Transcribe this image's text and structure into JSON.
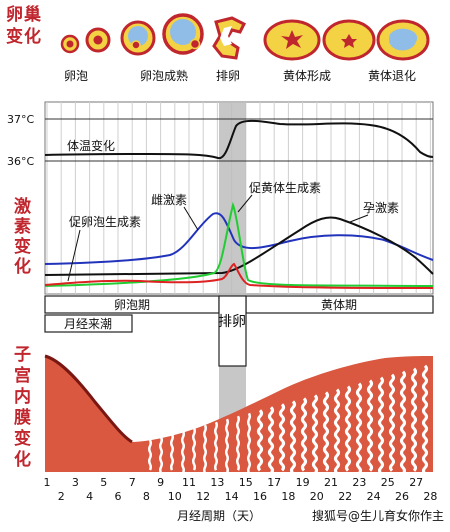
{
  "side_titles": {
    "ovary": [
      "卵",
      "巢",
      "变",
      "化"
    ],
    "hormone": [
      "激",
      "素",
      "变",
      "化"
    ],
    "endometrium": [
      "子",
      "宫",
      "内",
      "膜",
      "变",
      "化"
    ]
  },
  "ovary_stages": [
    "卵泡",
    "卵泡成熟",
    "排卵",
    "黄体形成",
    "黄体退化"
  ],
  "temperature": {
    "labels": [
      "37°C",
      "36°C"
    ],
    "curve_label": "体温变化"
  },
  "hormones": {
    "estrogen": "雌激素",
    "lh": "促黄体生成素",
    "fsh": "促卵泡生成素",
    "progesterone": "孕激素"
  },
  "phases": {
    "follicular": "卵泡期",
    "ovulation": "排卵",
    "luteal": "黄体期",
    "menstruation": "月经来潮"
  },
  "x_axis": {
    "odd_ticks": [
      "1",
      "3",
      "5",
      "7",
      "9",
      "11",
      "13",
      "15",
      "17",
      "19",
      "21",
      "23",
      "25",
      "27"
    ],
    "even_ticks": [
      "2",
      "4",
      "6",
      "8",
      "10",
      "12",
      "14",
      "16",
      "18",
      "20",
      "22",
      "24",
      "26",
      "28"
    ],
    "title": "月经周期（天）"
  },
  "watermark": "搜狐号@生儿育女你作主",
  "colors": {
    "title_red": "#c0262d",
    "temperature": "#111111",
    "estrogen": "#2233bb",
    "lh": "#22cc33",
    "fsh": "#dd2222",
    "progesterone": "#111111",
    "endometrium": "#d9583f",
    "ovulation_band": "#bdbdbd"
  }
}
